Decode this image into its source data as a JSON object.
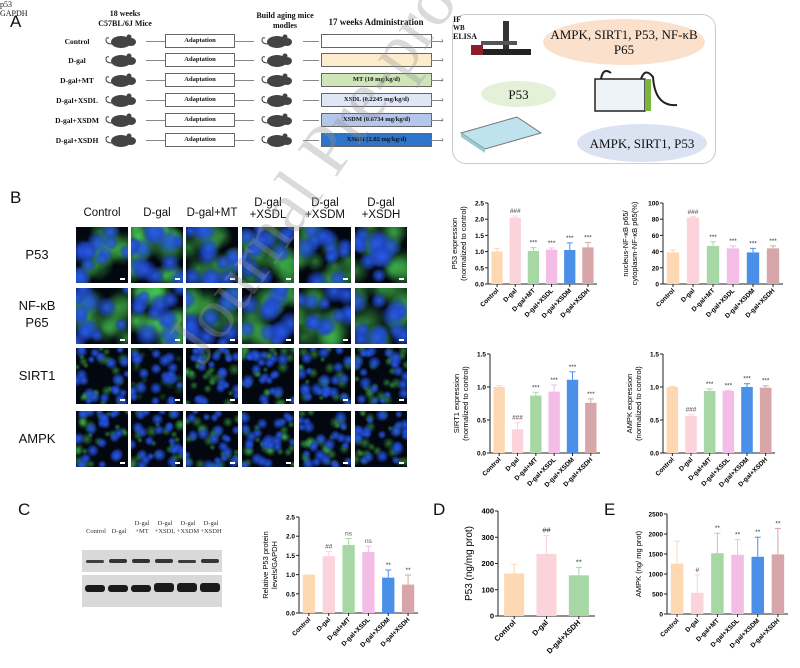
{
  "panels": {
    "a": "A",
    "b": "B",
    "c": "C",
    "d": "D",
    "e": "E"
  },
  "panel_a": {
    "header_mice": [
      "18 weeks",
      "C57BL/6J Mice"
    ],
    "header_model": [
      "Build aging mice",
      "modles"
    ],
    "header_admin": "17 weeks Administration",
    "groups": [
      {
        "name": "Control",
        "step": "Adaptation",
        "treatment": "",
        "color": "#ffffff"
      },
      {
        "name": "D-gal",
        "step": "Adaptation",
        "treatment": "",
        "color": "#fdeccb"
      },
      {
        "name": "D-gal+MT",
        "step": "Adaptation",
        "treatment": "MT (10 mg/kg/d)",
        "color": "#cfe6b8"
      },
      {
        "name": "D-gal+XSDL",
        "step": "Adaptation",
        "treatment": "XSDL (0.2245 mg/kg/d)",
        "color": "#dfe6f6"
      },
      {
        "name": "D-gal+XSDM",
        "step": "Adaptation",
        "treatment": "XSDM (0.6734 mg/kg/d)",
        "color": "#b4c6ea"
      },
      {
        "name": "D-gal+XSDH",
        "step": "Adaptation",
        "treatment": "XSDH (2.02 mg/kg/d)",
        "color": "#2e74c8"
      }
    ],
    "assays": {
      "if_label": "IF",
      "if_targets": "AMPK, SIRT1, P53, NF-κB P65",
      "wb_label": "WB",
      "wb_targets": "AMPK, SIRT1, P53",
      "elisa_label": "ELISA",
      "elisa_targets": "P53"
    }
  },
  "panel_b": {
    "columns": [
      [
        "Control"
      ],
      [
        "D-gal"
      ],
      [
        "D-gal+MT"
      ],
      [
        "D-gal",
        "+XSDL"
      ],
      [
        "D-gal",
        "+XSDM"
      ],
      [
        "D-gal",
        "+XSDH"
      ]
    ],
    "rows": [
      [
        "P53"
      ],
      [
        "NF-κB",
        "P65"
      ],
      [
        "SIRT1"
      ],
      [
        "AMPK"
      ]
    ]
  },
  "panel_c": {
    "lanes": [
      [
        "Control"
      ],
      [
        "D-gal"
      ],
      [
        "D-gal",
        "+MT"
      ],
      [
        "D-gal",
        "+XSDL"
      ],
      [
        "D-gal",
        "+XSDM"
      ],
      [
        "D-gal",
        "+XSDH"
      ]
    ],
    "bands": [
      "p53",
      "GAPDH"
    ]
  },
  "watermark": "Journal Pre-proof",
  "colors": [
    "#fdd8b2",
    "#fbd3da",
    "#a6d7a4",
    "#f3bde6",
    "#4a90e8",
    "#d6a6a8"
  ],
  "chart_data": [
    {
      "id": "b-p53",
      "type": "bar",
      "categories": [
        "Control",
        "D-gal",
        "D-gal+MT",
        "D-gal+XSDL",
        "D-gal+XSDM",
        "D-gal+XSDH"
      ],
      "values": [
        1.0,
        2.05,
        1.02,
        1.06,
        1.05,
        1.13
      ],
      "errors": [
        0.1,
        0.05,
        0.1,
        0.05,
        0.22,
        0.15
      ],
      "annotations": [
        "",
        "###",
        "***",
        "***",
        "***",
        "***"
      ],
      "ylabel": [
        "P53 expression",
        "(normalized to control)"
      ],
      "ylim": [
        0,
        2.5
      ],
      "yticks": [
        0,
        0.5,
        1.0,
        1.5,
        2.0,
        2.5
      ],
      "tick_format": 1
    },
    {
      "id": "b-nfkb",
      "type": "bar",
      "categories": [
        "Control",
        "D-gal",
        "D-gal+MT",
        "D-gal+XSDL",
        "D-gal+XSDM",
        "D-gal+XSDH"
      ],
      "values": [
        39,
        82,
        47,
        44,
        39,
        44
      ],
      "errors": [
        3,
        1,
        5,
        3,
        5,
        3
      ],
      "annotations": [
        "",
        "###",
        "***",
        "***",
        "***",
        "***"
      ],
      "ylabel": [
        "nucleus-NF-κB p65/",
        "cytoplasm-NF-κB p65(%)"
      ],
      "ylim": [
        0,
        100
      ],
      "yticks": [
        0,
        20,
        40,
        60,
        80,
        100
      ],
      "tick_format": 0
    },
    {
      "id": "b-sirt1",
      "type": "bar",
      "categories": [
        "Control",
        "D-gal",
        "D-gal+MT",
        "D-gal+XSDL",
        "D-gal+XSDM",
        "D-gal+XSDH"
      ],
      "values": [
        1.0,
        0.36,
        0.87,
        0.93,
        1.11,
        0.76
      ],
      "errors": [
        0.02,
        0.1,
        0.05,
        0.1,
        0.12,
        0.06
      ],
      "annotations": [
        "",
        "###",
        "***",
        "***",
        "***",
        "***"
      ],
      "ylabel": [
        "SIRT1 expression",
        "(normalized to control)"
      ],
      "ylim": [
        0,
        1.5
      ],
      "yticks": [
        0,
        0.5,
        1.0,
        1.5
      ],
      "tick_format": 1
    },
    {
      "id": "b-ampk",
      "type": "bar",
      "categories": [
        "Control",
        "D-gal",
        "D-gal+MT",
        "D-gal+XSDL",
        "D-gal+XSDM",
        "D-gal+XSDH"
      ],
      "values": [
        1.0,
        0.56,
        0.94,
        0.94,
        1.0,
        0.99
      ],
      "errors": [
        0.01,
        0.02,
        0.03,
        0.01,
        0.05,
        0.03
      ],
      "annotations": [
        "",
        "###",
        "***",
        "***",
        "***",
        "***"
      ],
      "ylabel": [
        "AMPK expression",
        "(normalized to control)"
      ],
      "ylim": [
        0,
        1.5
      ],
      "yticks": [
        0,
        0.5,
        1.0,
        1.5
      ],
      "tick_format": 1
    },
    {
      "id": "c-wb",
      "type": "bar",
      "categories": [
        "Control",
        "D-gal",
        "D-gal+MT",
        "D-gal+XSDL",
        "D-gal+XSDM",
        "D-gal+XSDH"
      ],
      "values": [
        1.0,
        1.48,
        1.77,
        1.59,
        0.92,
        0.74
      ],
      "errors": [
        0,
        0.12,
        0.17,
        0.15,
        0.2,
        0.25
      ],
      "annotations": [
        "",
        "##",
        "ns",
        "ns",
        "**",
        "**"
      ],
      "ylabel": [
        "Relative P53 protein",
        "levels/GAPDH"
      ],
      "ylim": [
        0,
        2.5
      ],
      "yticks": [
        0,
        0.5,
        1.0,
        1.5,
        2.0,
        2.5
      ],
      "tick_format": 1
    },
    {
      "id": "d-elisa",
      "type": "bar",
      "categories": [
        "Control",
        "D-gal",
        "D-gal+XSDH"
      ],
      "values": [
        162,
        237,
        155
      ],
      "errors": [
        35,
        70,
        30
      ],
      "annotations": [
        "",
        "##",
        "**"
      ],
      "ylabel": [
        "P53 (ng/mg prot)"
      ],
      "ylim": [
        0,
        400
      ],
      "yticks": [
        0,
        100,
        200,
        300,
        400
      ],
      "tick_format": 0,
      "colors": [
        "#fdd8b2",
        "#fbd3da",
        "#a6d7a4"
      ]
    },
    {
      "id": "e-elisa",
      "type": "bar",
      "categories": [
        "Control",
        "D-gal",
        "D-gal+MT",
        "D-gal+XSDL",
        "D-gal+XSDM",
        "D-gal+XSDH"
      ],
      "values": [
        1260,
        530,
        1520,
        1480,
        1430,
        1490
      ],
      "errors": [
        560,
        450,
        500,
        380,
        490,
        650
      ],
      "annotations": [
        "",
        "#",
        "**",
        "**",
        "**",
        "**"
      ],
      "ylabel": [
        "AMPK (ng/ mg prot)"
      ],
      "ylim": [
        0,
        2500
      ],
      "yticks": [
        0,
        500,
        1000,
        1500,
        2000,
        2500
      ],
      "tick_format": 0
    }
  ]
}
